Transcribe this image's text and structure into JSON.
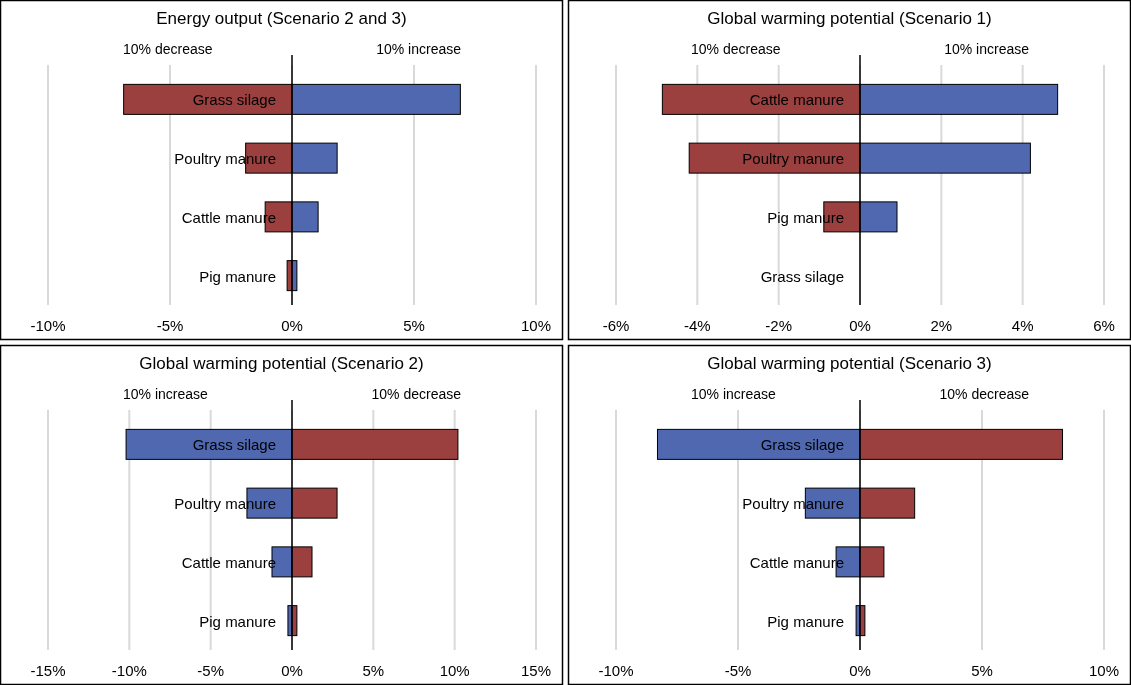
{
  "chart_data": [
    {
      "type": "bar",
      "orientation": "horizontal",
      "stacked": true,
      "title": "Energy output (Scenario 2 and 3)",
      "categories": [
        "Grass silage",
        "Poultry manure",
        "Cattle manure",
        "Pig manure"
      ],
      "series": [
        {
          "name": "10% decrease",
          "color": "#9b3f3f",
          "values": [
            -6.9,
            -1.9,
            -1.1,
            -0.2
          ]
        },
        {
          "name": "10% increase",
          "color": "#5068b0",
          "values": [
            6.9,
            1.85,
            1.07,
            0.2
          ]
        }
      ],
      "xlim": [
        -10,
        10
      ],
      "xticks": [
        {
          "value": -10,
          "label": "-10%"
        },
        {
          "value": -5,
          "label": "-5%"
        },
        {
          "value": 0,
          "label": "0%"
        },
        {
          "value": 5,
          "label": "5%"
        },
        {
          "value": 10,
          "label": "10%"
        }
      ],
      "grid": "x",
      "legend": false
    },
    {
      "type": "bar",
      "orientation": "horizontal",
      "stacked": true,
      "title": "Global warming potential (Scenario 1)",
      "categories": [
        "Cattle manure",
        "Poultry manure",
        "Pig manure",
        "Grass silage"
      ],
      "series": [
        {
          "name": "10% decrease",
          "color": "#9b3f3f",
          "values": [
            -4.86,
            -4.2,
            -0.89,
            0
          ]
        },
        {
          "name": "10% increase",
          "color": "#5068b0",
          "values": [
            4.86,
            4.19,
            0.91,
            0
          ]
        }
      ],
      "xlim": [
        -6,
        6
      ],
      "xticks": [
        {
          "value": -6,
          "label": "-6%"
        },
        {
          "value": -4,
          "label": "-4%"
        },
        {
          "value": -2,
          "label": "-2%"
        },
        {
          "value": 0,
          "label": "0%"
        },
        {
          "value": 2,
          "label": "2%"
        },
        {
          "value": 4,
          "label": "4%"
        },
        {
          "value": 6,
          "label": "6%"
        }
      ],
      "grid": "x",
      "legend": false
    },
    {
      "type": "bar",
      "orientation": "horizontal",
      "stacked": true,
      "title": "Global warming potential (Scenario 2)",
      "categories": [
        "Grass silage",
        "Poultry manure",
        "Cattle manure",
        "Pig manure"
      ],
      "series": [
        {
          "name": "10% increase",
          "color": "#5068b0",
          "values": [
            -10.2,
            -2.77,
            -1.23,
            -0.25
          ]
        },
        {
          "name": "10% decrease",
          "color": "#9b3f3f",
          "values": [
            10.2,
            2.77,
            1.23,
            0.3
          ]
        }
      ],
      "xlim": [
        -15,
        15
      ],
      "xticks": [
        {
          "value": -15,
          "label": "-15%"
        },
        {
          "value": -10,
          "label": "-10%"
        },
        {
          "value": -5,
          "label": "-5%"
        },
        {
          "value": 0,
          "label": "0%"
        },
        {
          "value": 5,
          "label": "5%"
        },
        {
          "value": 10,
          "label": "10%"
        },
        {
          "value": 15,
          "label": "15%"
        }
      ],
      "grid": "x",
      "legend": false
    },
    {
      "type": "bar",
      "orientation": "horizontal",
      "stacked": true,
      "title": "Global warming potential (Scenario 3)",
      "categories": [
        "Grass silage",
        "Poultry manure",
        "Cattle manure",
        "Pig manure"
      ],
      "series": [
        {
          "name": "10% increase",
          "color": "#5068b0",
          "values": [
            -8.3,
            -2.24,
            -0.98,
            -0.16
          ]
        },
        {
          "name": "10% decrease",
          "color": "#9b3f3f",
          "values": [
            8.3,
            2.24,
            0.98,
            0.2
          ]
        }
      ],
      "xlim": [
        -10,
        10
      ],
      "xticks": [
        {
          "value": -10,
          "label": "-10%"
        },
        {
          "value": -5,
          "label": "-5%"
        },
        {
          "value": 0,
          "label": "0%"
        },
        {
          "value": 5,
          "label": "5%"
        },
        {
          "value": 10,
          "label": "10%"
        }
      ],
      "grid": "x",
      "legend": false
    }
  ]
}
